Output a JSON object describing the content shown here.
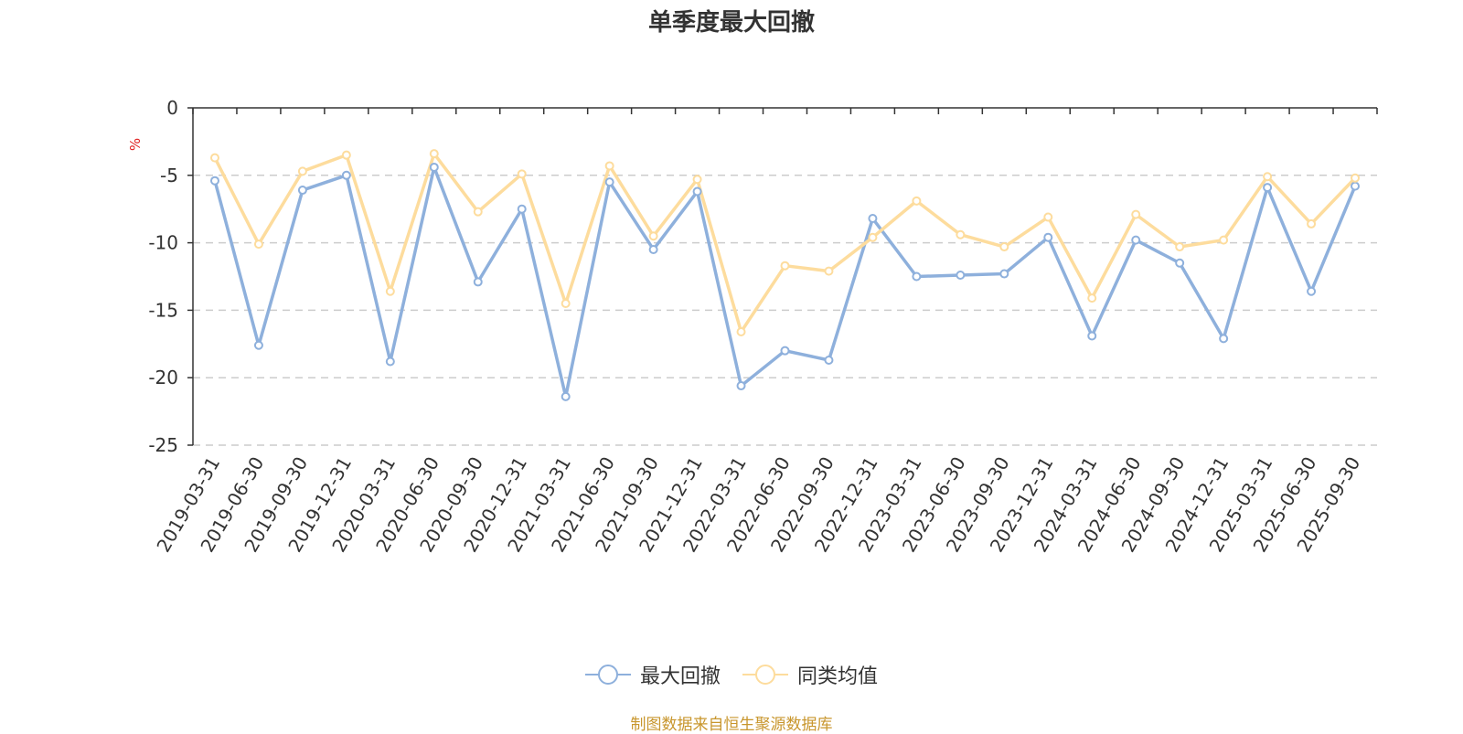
{
  "chart_data": {
    "type": "line",
    "title": "单季度最大回撤",
    "ylabel": "%",
    "xlabel": "",
    "ylim": [
      -25,
      0
    ],
    "yticks": [
      0,
      -5,
      -10,
      -15,
      -20,
      -25
    ],
    "categories": [
      "2019-03-31",
      "2019-06-30",
      "2019-09-30",
      "2019-12-31",
      "2020-03-31",
      "2020-06-30",
      "2020-09-30",
      "2020-12-31",
      "2021-03-31",
      "2021-06-30",
      "2021-09-30",
      "2021-12-31",
      "2022-03-31",
      "2022-06-30",
      "2022-09-30",
      "2022-12-31",
      "2023-03-31",
      "2023-06-30",
      "2023-09-30",
      "2023-12-31",
      "2024-03-31",
      "2024-06-30",
      "2024-09-30",
      "2024-12-31",
      "2025-03-31",
      "2025-06-30",
      "2025-09-30"
    ],
    "series": [
      {
        "name": "最大回撤",
        "color": "#8eb0dc",
        "values": [
          -5.4,
          -17.6,
          -6.1,
          -5.0,
          -18.8,
          -4.4,
          -12.9,
          -7.5,
          -21.4,
          -5.5,
          -10.5,
          -6.2,
          -20.6,
          -18.0,
          -18.7,
          -8.2,
          -12.5,
          -12.4,
          -12.3,
          -9.6,
          -16.9,
          -9.8,
          -11.5,
          -17.1,
          -5.9,
          -13.6,
          -5.8
        ]
      },
      {
        "name": "同类均值",
        "color": "#fddc9d",
        "values": [
          -3.7,
          -10.1,
          -4.7,
          -3.5,
          -13.6,
          -3.4,
          -7.7,
          -4.9,
          -14.5,
          -4.3,
          -9.5,
          -5.3,
          -16.6,
          -11.7,
          -12.1,
          -9.6,
          -6.9,
          -9.4,
          -10.3,
          -8.1,
          -14.1,
          -7.9,
          -10.3,
          -9.8,
          -5.1,
          -8.6,
          -5.2
        ]
      }
    ],
    "legend_position": "bottom-center",
    "grid": true
  },
  "source_text": "制图数据来自恒生聚源数据库"
}
